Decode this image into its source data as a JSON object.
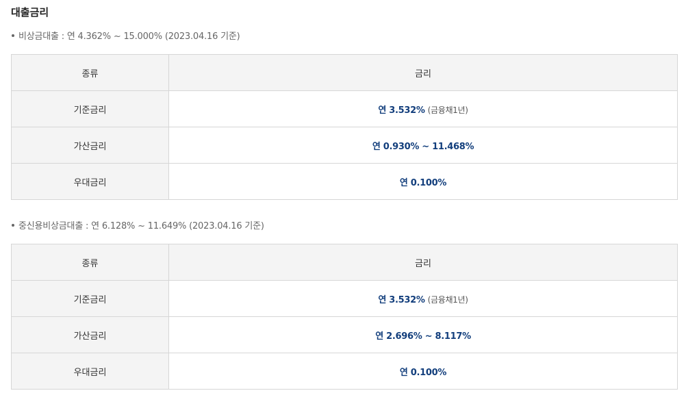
{
  "title": "대출금리",
  "sections": [
    {
      "note": "비상금대출 : 연 4.362% ~ 15.000% (2023.04.16 기준)",
      "header": {
        "type": "종류",
        "rate": "금리"
      },
      "rows": [
        {
          "type": "기준금리",
          "rate": "연 3.532%",
          "sub": "(금융채1년)"
        },
        {
          "type": "가산금리",
          "rate": "연 0.930% ~ 11.468%",
          "sub": ""
        },
        {
          "type": "우대금리",
          "rate": "연 0.100%",
          "sub": ""
        }
      ]
    },
    {
      "note": "중신용비상금대출 : 연 6.128% ~ 11.649% (2023.04.16 기준)",
      "header": {
        "type": "종류",
        "rate": "금리"
      },
      "rows": [
        {
          "type": "기준금리",
          "rate": "연 3.532%",
          "sub": "(금융채1년)"
        },
        {
          "type": "가산금리",
          "rate": "연 2.696% ~ 8.117%",
          "sub": ""
        },
        {
          "type": "우대금리",
          "rate": "연 0.100%",
          "sub": ""
        }
      ]
    }
  ],
  "colors": {
    "rate_text": "#123e7c",
    "header_bg": "#f4f4f4",
    "border": "#d6d6d6"
  }
}
